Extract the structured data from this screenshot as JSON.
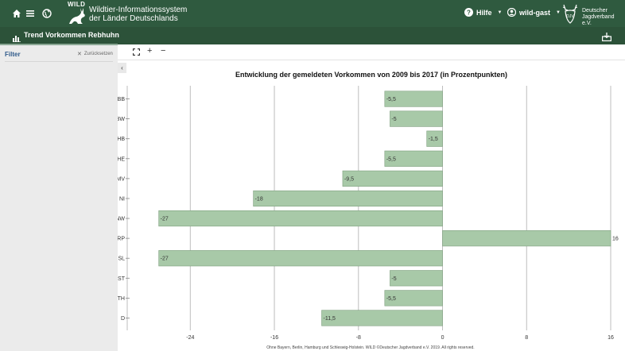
{
  "header": {
    "brand_small": "WILD",
    "brand_line1": "Wildtier-Informationssystem",
    "brand_line2": "der Länder Deutschlands",
    "help_label": "Hilfe",
    "user_label": "wild-gast",
    "org_line1": "Deutscher",
    "org_line2": "Jagdverband e.V.",
    "org_badge": "DJV"
  },
  "subheader": {
    "title": "Trend Vorkommen Rebhuhn"
  },
  "sidebar": {
    "filter_label": "Filter",
    "reset_label": "Zurücksetzen"
  },
  "toolbar": {
    "expand_icon": "fullscreen-icon",
    "zoom_in": "+",
    "zoom_out": "−",
    "collapse": "‹"
  },
  "chart_data": {
    "type": "bar",
    "orientation": "horizontal",
    "title": "Entwicklung der gemeldeten Vorkommen von 2009 bis 2017 (in Prozentpunkten)",
    "footnote": "Ohne Bayern, Berlin, Hamburg und Schleswig-Holstein. WILD ©Deutscher Jagdverband e.V. 2019. All rights reserved.",
    "categories": [
      "BB",
      "BW",
      "HB",
      "HE",
      "MV",
      "NI",
      "NW",
      "RP",
      "SL",
      "ST",
      "TH",
      "D"
    ],
    "values": [
      -5.5,
      -5,
      -1.5,
      -5.5,
      -9.5,
      -18,
      -27,
      16,
      -27,
      -5,
      -5.5,
      -11.5
    ],
    "labels": [
      "-5,5",
      "-5",
      "-1,5",
      "-5,5",
      "-9,5",
      "-18",
      "-27",
      "16",
      "-27",
      "-5",
      "-5,5",
      "-11,5"
    ],
    "xticks": [
      -24,
      -16,
      -8,
      0,
      8,
      16
    ],
    "xlim": [
      -30,
      16
    ],
    "grid": true,
    "bar_color": "#a8c9a8",
    "bar_stroke": "#7fa07f"
  },
  "colors": {
    "header_bg": "#2f5a3f",
    "subheader_bg": "#2c5239",
    "sidebar_bg": "#ebebeb",
    "filter_accent": "#2f5a8a"
  }
}
